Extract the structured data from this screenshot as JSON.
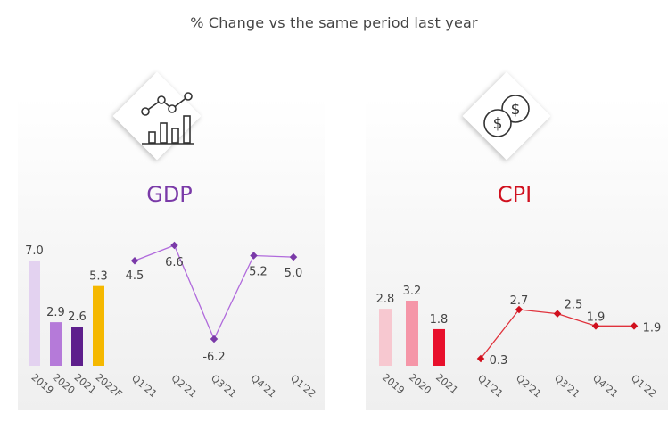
{
  "header": {
    "title": "% Change vs the same period last year"
  },
  "colors": {
    "gdp_title": "#7a3aa8",
    "cpi_title": "#d0101e",
    "gdp_line": "#b06adc",
    "gdp_marker": "#7a3aa8",
    "cpi_line": "#e0323c",
    "cpi_marker": "#d0101e",
    "axis_label": "#555555",
    "value_label": "#444444"
  },
  "sections": {
    "gdp": {
      "title": "GDP",
      "icon": "bar-line-chart-icon"
    },
    "cpi": {
      "title": "CPI",
      "icon": "coins-dollar-icon"
    }
  },
  "chart_data": [
    {
      "id": "gdp-annual",
      "type": "bar",
      "categories": [
        "2019",
        "2020",
        "2021",
        "2022F"
      ],
      "values": [
        7.0,
        2.9,
        2.6,
        5.3
      ],
      "value_labels": [
        "7.0",
        "2.9",
        "2.6",
        "5.3"
      ],
      "bar_colors": [
        "#e3d2f0",
        "#b57ad9",
        "#5e1f8c",
        "#f5b800"
      ],
      "ylim": [
        0,
        7.0
      ]
    },
    {
      "id": "gdp-quarterly",
      "type": "line",
      "categories": [
        "Q1'21",
        "Q2'21",
        "Q3'21",
        "Q4'21",
        "Q1'22"
      ],
      "values": [
        4.5,
        6.6,
        -6.2,
        5.2,
        5.0
      ],
      "value_labels": [
        "4.5",
        "6.6",
        "-6.2",
        "5.2",
        "5.0"
      ],
      "ylim": [
        -6.2,
        6.6
      ]
    },
    {
      "id": "cpi-annual",
      "type": "bar",
      "categories": [
        "2019",
        "2020",
        "2021"
      ],
      "values": [
        2.8,
        3.2,
        1.8
      ],
      "value_labels": [
        "2.8",
        "3.2",
        "1.8"
      ],
      "bar_colors": [
        "#f7c8d0",
        "#f596a8",
        "#e8102c"
      ],
      "ylim": [
        0,
        3.2
      ]
    },
    {
      "id": "cpi-quarterly",
      "type": "line",
      "categories": [
        "Q1'21",
        "Q2'21",
        "Q3'21",
        "Q4'21",
        "Q1'22"
      ],
      "values": [
        0.3,
        2.7,
        2.5,
        1.9,
        1.9
      ],
      "value_labels": [
        "0.3",
        "2.7",
        "2.5",
        "1.9",
        "1.9"
      ],
      "ylim": [
        0.3,
        2.7
      ]
    }
  ]
}
